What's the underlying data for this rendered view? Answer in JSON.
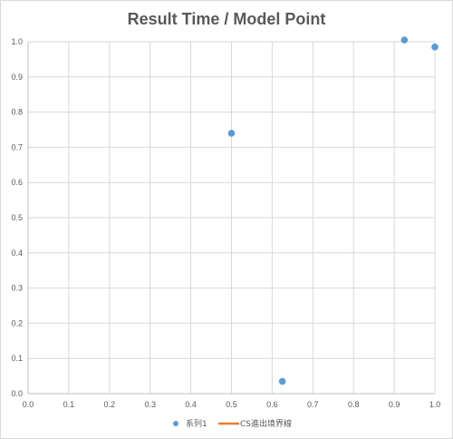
{
  "chart_data": {
    "type": "scatter",
    "title": "Result Time / Model Point",
    "xlabel": "",
    "ylabel": "",
    "xlim": [
      0,
      1
    ],
    "ylim": [
      0,
      1
    ],
    "xticks": [
      "0.0",
      "0.1",
      "0.2",
      "0.3",
      "0.4",
      "0.5",
      "0.6",
      "0.7",
      "0.8",
      "0.9",
      "1.0"
    ],
    "yticks": [
      "0.0",
      "0.1",
      "0.2",
      "0.3",
      "0.4",
      "0.5",
      "0.6",
      "0.7",
      "0.8",
      "0.9",
      "1.0"
    ],
    "grid": true,
    "legend_position": "bottom",
    "series": [
      {
        "name": "系列1",
        "marker": "circle",
        "color": "#5b9bd5",
        "x": [
          0.5,
          0.625,
          0.925,
          1.0
        ],
        "y": [
          0.74,
          0.035,
          1.005,
          0.985
        ]
      },
      {
        "name": "CS進出境界線",
        "marker": "line",
        "color": "#ed7d31",
        "x": [],
        "y": []
      }
    ]
  }
}
